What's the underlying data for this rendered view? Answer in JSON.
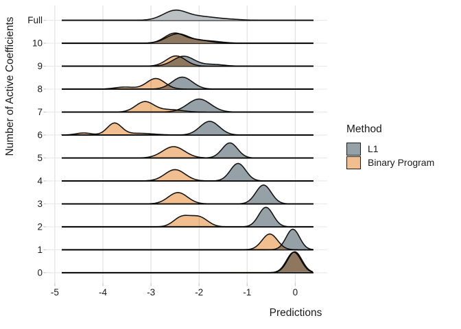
{
  "chart_data": {
    "type": "ridgeline",
    "title": "",
    "xlabel": "Predictions",
    "ylabel": "Number of Active Coefficients",
    "x_ticks": [
      -5,
      -4,
      -3,
      -2,
      -1,
      0
    ],
    "xlim": [
      -5.2,
      0.67
    ],
    "grid": true,
    "legend": {
      "title": "Method",
      "position": "right",
      "entries": [
        {
          "label": "L1",
          "key": "l1"
        },
        {
          "label": "Binary Program",
          "key": "binary"
        }
      ]
    },
    "colors": {
      "l1": "#96A0A7",
      "binary": "#F1BE90",
      "full": "#BBC0C3",
      "outline": "#141414",
      "baseline": "#0e0e0e",
      "text": "#1a1a1a"
    },
    "note": "Each row shows prediction densities; components are gaussian {mean m (data units), sd s (data units), amplitude a (peak height px)}",
    "rows": [
      {
        "label": "Full",
        "series": [
          {
            "key": "full",
            "components": [
              {
                "m": -2.5,
                "s": 0.25,
                "a": 14.0
              },
              {
                "m": -1.93,
                "s": 0.3,
                "a": 5.0
              },
              {
                "m": -1.35,
                "s": 0.25,
                "a": 1.2
              }
            ]
          }
        ]
      },
      {
        "label": "10",
        "series": [
          {
            "key": "l1",
            "components": [
              {
                "m": -2.45,
                "s": 0.23,
                "a": 13.5
              },
              {
                "m": -1.85,
                "s": 0.28,
                "a": 3.5
              }
            ]
          },
          {
            "key": "binary",
            "components": [
              {
                "m": -2.52,
                "s": 0.2,
                "a": 14.0
              },
              {
                "m": -2.05,
                "s": 0.25,
                "a": 5.0
              }
            ]
          }
        ]
      },
      {
        "label": "9",
        "series": [
          {
            "key": "l1",
            "components": [
              {
                "m": -2.32,
                "s": 0.22,
                "a": 14.5
              },
              {
                "m": -1.7,
                "s": 0.22,
                "a": 2.5
              }
            ]
          },
          {
            "key": "binary",
            "components": [
              {
                "m": -2.48,
                "s": 0.2,
                "a": 15.0
              }
            ]
          }
        ]
      },
      {
        "label": "8",
        "series": [
          {
            "key": "l1",
            "components": [
              {
                "m": -2.35,
                "s": 0.21,
                "a": 17.5
              }
            ]
          },
          {
            "key": "binary",
            "components": [
              {
                "m": -2.9,
                "s": 0.19,
                "a": 15.5
              },
              {
                "m": -3.55,
                "s": 0.2,
                "a": 3.0
              }
            ]
          }
        ]
      },
      {
        "label": "7",
        "series": [
          {
            "key": "l1",
            "components": [
              {
                "m": -2.0,
                "s": 0.24,
                "a": 19.0
              }
            ]
          },
          {
            "key": "binary",
            "components": [
              {
                "m": -3.13,
                "s": 0.19,
                "a": 15.0
              },
              {
                "m": -2.6,
                "s": 0.25,
                "a": 3.5
              }
            ]
          }
        ]
      },
      {
        "label": "6",
        "series": [
          {
            "key": "l1",
            "components": [
              {
                "m": -1.78,
                "s": 0.2,
                "a": 20.0
              }
            ]
          },
          {
            "key": "binary",
            "components": [
              {
                "m": -3.76,
                "s": 0.15,
                "a": 17.0
              },
              {
                "m": -4.4,
                "s": 0.16,
                "a": 3.0
              },
              {
                "m": -3.25,
                "s": 0.3,
                "a": 2.5
              }
            ]
          }
        ]
      },
      {
        "label": "5",
        "series": [
          {
            "key": "l1",
            "components": [
              {
                "m": -1.36,
                "s": 0.16,
                "a": 22.0
              }
            ]
          },
          {
            "key": "binary",
            "components": [
              {
                "m": -2.53,
                "s": 0.23,
                "a": 16.5
              }
            ]
          }
        ]
      },
      {
        "label": "4",
        "series": [
          {
            "key": "l1",
            "components": [
              {
                "m": -1.19,
                "s": 0.16,
                "a": 25.5
              }
            ]
          },
          {
            "key": "binary",
            "components": [
              {
                "m": -2.5,
                "s": 0.21,
                "a": 16.5
              }
            ]
          }
        ]
      },
      {
        "label": "3",
        "series": [
          {
            "key": "l1",
            "components": [
              {
                "m": -0.66,
                "s": 0.16,
                "a": 27.5
              }
            ]
          },
          {
            "key": "binary",
            "components": [
              {
                "m": -2.44,
                "s": 0.2,
                "a": 16.5
              }
            ]
          }
        ]
      },
      {
        "label": "2",
        "series": [
          {
            "key": "l1",
            "components": [
              {
                "m": -0.61,
                "s": 0.15,
                "a": 28.5
              }
            ]
          },
          {
            "key": "binary",
            "components": [
              {
                "m": -2.36,
                "s": 0.17,
                "a": 14.0
              },
              {
                "m": -2.0,
                "s": 0.18,
                "a": 14.0
              }
            ]
          }
        ]
      },
      {
        "label": "1",
        "series": [
          {
            "key": "l1",
            "components": [
              {
                "m": -0.05,
                "s": 0.14,
                "a": 30.0
              }
            ]
          },
          {
            "key": "binary",
            "components": [
              {
                "m": -0.53,
                "s": 0.16,
                "a": 23.0
              }
            ]
          }
        ]
      },
      {
        "label": "0",
        "series": [
          {
            "key": "l1",
            "components": [
              {
                "m": -0.03,
                "s": 0.15,
                "a": 30.0
              }
            ]
          },
          {
            "key": "binary",
            "components": [
              {
                "m": -0.01,
                "s": 0.15,
                "a": 30.5
              }
            ]
          }
        ]
      }
    ]
  }
}
